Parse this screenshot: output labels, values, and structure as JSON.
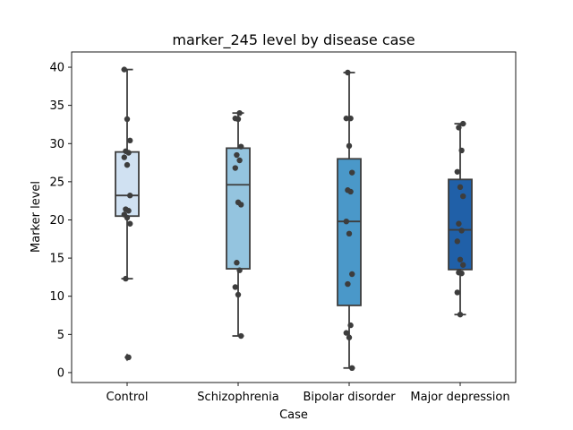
{
  "chart_data": {
    "type": "box",
    "title": "marker_245 level by disease case",
    "xlabel": "Case",
    "ylabel": "Marker level",
    "ylim": [
      -1.3,
      42.0
    ],
    "yticks": [
      0,
      5,
      10,
      15,
      20,
      25,
      30,
      35,
      40
    ],
    "categories": [
      "Control",
      "Schizophrenia",
      "Bipolar disorder",
      "Major depression"
    ],
    "colors": [
      "#d0e1f2",
      "#94c4df",
      "#4a98c9",
      "#2060a8"
    ],
    "boxes": [
      {
        "q1": 20.5,
        "median": 23.2,
        "q3": 28.9,
        "whisker_low": 12.3,
        "whisker_high": 39.7,
        "outliers": [
          2.0
        ]
      },
      {
        "q1": 13.6,
        "median": 24.6,
        "q3": 29.4,
        "whisker_low": 4.8,
        "whisker_high": 34.0,
        "outliers": []
      },
      {
        "q1": 8.8,
        "median": 19.8,
        "q3": 28.0,
        "whisker_low": 0.6,
        "whisker_high": 39.3,
        "outliers": []
      },
      {
        "q1": 13.5,
        "median": 18.7,
        "q3": 25.3,
        "whisker_low": 7.6,
        "whisker_high": 32.6,
        "outliers": []
      }
    ],
    "points": [
      [
        39.7,
        33.2,
        30.4,
        29.0,
        28.8,
        28.2,
        27.2,
        23.2,
        21.4,
        21.2,
        20.7,
        20.3,
        19.5,
        12.3,
        2.0
      ],
      [
        34.0,
        33.3,
        33.2,
        29.6,
        28.5,
        27.8,
        26.8,
        22.3,
        22.0,
        14.4,
        13.4,
        11.2,
        10.2,
        4.8
      ],
      [
        39.3,
        33.3,
        33.3,
        29.7,
        26.2,
        23.9,
        23.7,
        19.8,
        18.2,
        12.9,
        11.6,
        6.2,
        5.2,
        4.6,
        0.6
      ],
      [
        32.6,
        32.1,
        29.1,
        26.3,
        24.3,
        23.1,
        19.5,
        18.6,
        17.2,
        14.8,
        14.1,
        13.1,
        13.0,
        10.5,
        7.6
      ]
    ]
  }
}
